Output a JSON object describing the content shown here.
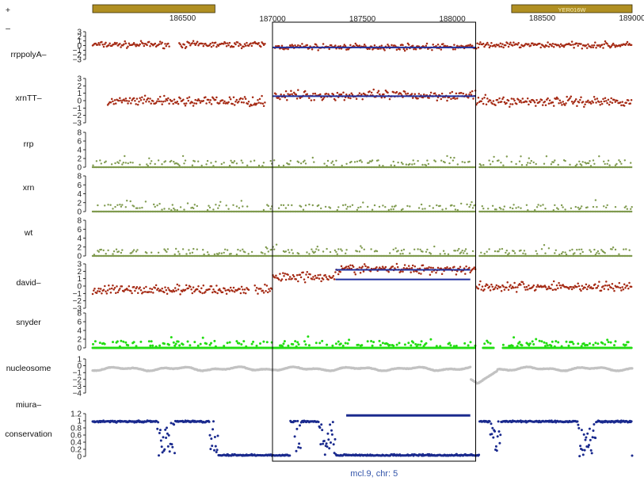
{
  "colors": {
    "signal_red": "#a52a14",
    "segment_blue": "#1f2f9e",
    "olive": "#7f9a4e",
    "green": "#22dd11",
    "grey": "#c2c2c2",
    "navy": "#1a2a8e",
    "gene_gold": "#b08f22"
  },
  "chart_data": {
    "type": "scatter",
    "title": "",
    "caption": "mcl.9, chr: 5",
    "strand_labels": [
      "+",
      "–"
    ],
    "xlim": [
      186000,
      189000
    ],
    "x_ticks_top": [
      "186500",
      "188500",
      "189000"
    ],
    "x_ticks_bottom": [
      "187000",
      "187500",
      "188000"
    ],
    "highlight_region": [
      187000,
      188130
    ],
    "genes": [
      {
        "name": "",
        "strand": "+",
        "start": 186000,
        "end": 186680
      },
      {
        "name": "YER016W",
        "strand": "+",
        "start": 188330,
        "end": 189000
      }
    ],
    "tracks": [
      {
        "name": "rrppolyA–",
        "kind": "signal",
        "ylim": [
          -3,
          3
        ],
        "ticks": [
          "3",
          "2",
          "1",
          "0",
          "−1",
          "−2",
          "−3"
        ],
        "gaps": [
          [
            186430,
            186480
          ],
          [
            186960,
            187010
          ]
        ],
        "levels": [
          [
            186000,
            187000,
            0.2
          ],
          [
            187000,
            188130,
            -0.3
          ],
          [
            188130,
            189000,
            0.1
          ]
        ],
        "segments": [
          {
            "start": 187000,
            "end": 188130,
            "value": -0.4
          }
        ]
      },
      {
        "name": "xrnTT–",
        "kind": "signal",
        "ylim": [
          -3,
          3
        ],
        "ticks": [
          "3",
          "2",
          "1",
          "0",
          "−1",
          "−2",
          "−3"
        ],
        "gaps": [
          [
            186000,
            186080
          ],
          [
            186960,
            187010
          ]
        ],
        "levels": [
          [
            186000,
            187000,
            -0.1
          ],
          [
            187000,
            188130,
            0.7
          ],
          [
            188130,
            189000,
            -0.1
          ]
        ],
        "segments": [
          {
            "start": 187000,
            "end": 188130,
            "value": 0.6
          }
        ]
      },
      {
        "name": "rrp",
        "kind": "counts",
        "ylim": [
          0,
          8
        ],
        "ticks": [
          "8",
          "6",
          "4",
          "2",
          "0"
        ],
        "gaps": [
          [
            188130,
            188150
          ]
        ]
      },
      {
        "name": "xrn",
        "kind": "counts",
        "ylim": [
          0,
          8
        ],
        "ticks": [
          "8",
          "6",
          "4",
          "2",
          "0"
        ],
        "gaps": [
          [
            188130,
            188150
          ]
        ]
      },
      {
        "name": "wt",
        "kind": "counts",
        "ylim": [
          0,
          8
        ],
        "ticks": [
          "8",
          "6",
          "4",
          "2",
          "0"
        ],
        "gaps": [
          [
            188130,
            188150
          ]
        ]
      },
      {
        "name": "david–",
        "kind": "signal",
        "ylim": [
          -3,
          3
        ],
        "ticks": [
          "3",
          "2",
          "1",
          "0",
          "−1",
          "−2",
          "−3"
        ],
        "gaps": [
          [
            186870,
            186900
          ]
        ],
        "levels": [
          [
            186000,
            187000,
            -0.5
          ],
          [
            187000,
            187350,
            1.3
          ],
          [
            187350,
            188130,
            2.3
          ],
          [
            188130,
            189000,
            -0.1
          ]
        ],
        "segments": [
          {
            "start": 187350,
            "end": 188100,
            "value": 2.2
          },
          {
            "start": 187350,
            "end": 188100,
            "value": 0.9
          }
        ]
      },
      {
        "name": "snyder",
        "kind": "counts_green",
        "ylim": [
          0,
          8
        ],
        "ticks": [
          "8",
          "6",
          "4",
          "2",
          "0"
        ],
        "gaps": [
          [
            188130,
            188170
          ],
          [
            188230,
            188280
          ]
        ]
      },
      {
        "name": "nucleosome",
        "kind": "wave",
        "ylim": [
          -4,
          1
        ],
        "ticks": [
          "1",
          "0",
          "−1",
          "−2",
          "−3",
          "−4"
        ]
      },
      {
        "name": "miura–",
        "kind": "empty",
        "ylim": [
          0,
          1
        ],
        "ticks": []
      },
      {
        "name": "conservation",
        "kind": "conservation",
        "ylim": [
          0,
          1.2
        ],
        "ticks": [
          "1.2",
          "1",
          "0.8",
          "0.6",
          "0.4",
          "0.2",
          "0"
        ],
        "bar": {
          "start": 187410,
          "end": 188100,
          "value": 1.15
        }
      }
    ]
  }
}
